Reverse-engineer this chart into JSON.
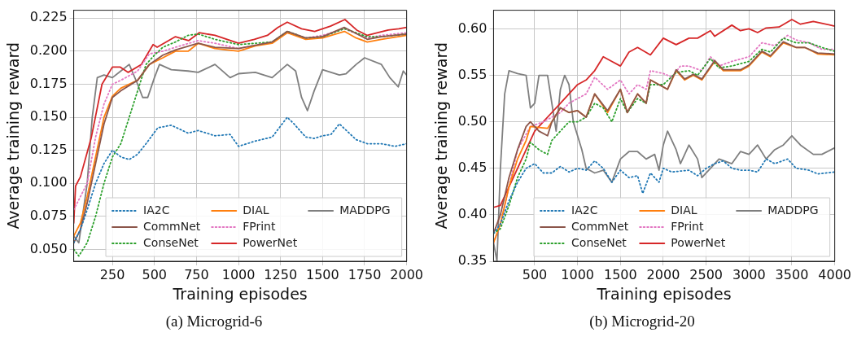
{
  "chart_data": [
    {
      "type": "line",
      "title": "(a) Microgrid-6",
      "xlabel": "Training episodes",
      "ylabel": "Average training reward",
      "xlim": [
        20,
        2000
      ],
      "ylim": [
        0.041,
        0.231
      ],
      "xticks": [
        250,
        500,
        750,
        1000,
        1250,
        1500,
        1750,
        2000
      ],
      "yticks": [
        {
          "value": 0.05,
          "label": "0.050"
        },
        {
          "value": 0.075,
          "label": "0.075"
        },
        {
          "value": 0.1,
          "label": "0.100"
        },
        {
          "value": 0.125,
          "label": "0.125"
        },
        {
          "value": 0.15,
          "label": "0.150"
        },
        {
          "value": 0.175,
          "label": "0.175"
        },
        {
          "value": 0.2,
          "label": "0.200"
        },
        {
          "value": 0.225,
          "label": "0.225"
        }
      ],
      "grid": true,
      "legend": "bottom right",
      "marker": "none",
      "series": [
        {
          "name": "IA2C",
          "color": "#1f77b4",
          "line_style": "dotted",
          "x": [
            20,
            60,
            100,
            150,
            200,
            250,
            300,
            350,
            400,
            450,
            520,
            600,
            700,
            760,
            860,
            950,
            1000,
            1100,
            1200,
            1290,
            1330,
            1400,
            1450,
            1500,
            1550,
            1600,
            1700,
            1766,
            1850,
            1930,
            2000
          ],
          "values": [
            0.055,
            0.065,
            0.08,
            0.1,
            0.115,
            0.125,
            0.12,
            0.118,
            0.122,
            0.13,
            0.142,
            0.144,
            0.138,
            0.14,
            0.136,
            0.137,
            0.128,
            0.132,
            0.135,
            0.15,
            0.145,
            0.135,
            0.134,
            0.136,
            0.137,
            0.145,
            0.133,
            0.13,
            0.13,
            0.128,
            0.13
          ]
        },
        {
          "name": "CommNet",
          "color": "#8c564b",
          "line_style": "solid",
          "x": [
            20,
            60,
            100,
            150,
            200,
            250,
            300,
            400,
            470,
            550,
            625,
            760,
            860,
            1000,
            1200,
            1290,
            1400,
            1500,
            1630,
            1766,
            1850,
            2000
          ],
          "values": [
            0.055,
            0.065,
            0.085,
            0.115,
            0.145,
            0.165,
            0.17,
            0.178,
            0.19,
            0.197,
            0.201,
            0.206,
            0.203,
            0.202,
            0.207,
            0.215,
            0.21,
            0.211,
            0.218,
            0.209,
            0.211,
            0.213
          ]
        },
        {
          "name": "ConseNet",
          "color": "#2ca02c",
          "line_style": "dotted",
          "x": [
            20,
            50,
            100,
            150,
            200,
            250,
            300,
            350,
            400,
            450,
            500,
            550,
            625,
            700,
            760,
            860,
            1000,
            1200,
            1290,
            1400,
            1500,
            1630,
            1766,
            1850,
            2000
          ],
          "values": [
            0.05,
            0.045,
            0.055,
            0.075,
            0.1,
            0.12,
            0.13,
            0.15,
            0.17,
            0.19,
            0.197,
            0.203,
            0.207,
            0.212,
            0.213,
            0.209,
            0.205,
            0.207,
            0.215,
            0.21,
            0.211,
            0.217,
            0.211,
            0.211,
            0.213
          ]
        },
        {
          "name": "DIAL",
          "color": "#ff7f0e",
          "line_style": "solid",
          "x": [
            20,
            60,
            100,
            150,
            200,
            250,
            300,
            400,
            470,
            550,
            625,
            700,
            760,
            860,
            1000,
            1100,
            1200,
            1290,
            1400,
            1500,
            1630,
            1700,
            1766,
            1850,
            2000
          ],
          "values": [
            0.06,
            0.07,
            0.09,
            0.12,
            0.15,
            0.166,
            0.172,
            0.178,
            0.19,
            0.195,
            0.2,
            0.2,
            0.206,
            0.202,
            0.2,
            0.204,
            0.206,
            0.214,
            0.209,
            0.21,
            0.215,
            0.21,
            0.207,
            0.209,
            0.212
          ]
        },
        {
          "name": "FPrint",
          "color": "#e377c2",
          "line_style": "dotted",
          "x": [
            20,
            40,
            100,
            150,
            200,
            250,
            300,
            400,
            470,
            550,
            625,
            760,
            860,
            1000,
            1200,
            1290,
            1400,
            1500,
            1630,
            1766,
            1850,
            2000
          ],
          "values": [
            0.08,
            0.085,
            0.1,
            0.135,
            0.16,
            0.175,
            0.178,
            0.185,
            0.198,
            0.2,
            0.203,
            0.208,
            0.206,
            0.202,
            0.207,
            0.214,
            0.21,
            0.212,
            0.217,
            0.21,
            0.212,
            0.214
          ]
        },
        {
          "name": "PowerNet",
          "color": "#d62728",
          "line_style": "solid",
          "x": [
            20,
            31,
            60,
            125,
            188,
            250,
            297,
            344,
            422,
            492,
            516,
            625,
            703,
            766,
            860,
            1000,
            1094,
            1172,
            1234,
            1290,
            1375,
            1453,
            1547,
            1633,
            1703,
            1766,
            1828,
            1891,
            1953,
            2000
          ],
          "values": [
            0.07,
            0.098,
            0.105,
            0.135,
            0.175,
            0.188,
            0.188,
            0.184,
            0.19,
            0.205,
            0.203,
            0.211,
            0.208,
            0.214,
            0.212,
            0.206,
            0.209,
            0.212,
            0.218,
            0.222,
            0.217,
            0.215,
            0.219,
            0.224,
            0.216,
            0.212,
            0.214,
            0.216,
            0.217,
            0.218
          ]
        },
        {
          "name": "MADDPG",
          "color": "#7f7f7f",
          "line_style": "solid",
          "x": [
            20,
            50,
            100,
            130,
            160,
            200,
            250,
            300,
            350,
            400,
            430,
            460,
            500,
            530,
            600,
            700,
            760,
            860,
            950,
            1000,
            1100,
            1200,
            1290,
            1340,
            1375,
            1410,
            1450,
            1500,
            1600,
            1640,
            1700,
            1750,
            1850,
            1900,
            1950,
            1980,
            2000
          ],
          "values": [
            0.06,
            0.055,
            0.1,
            0.15,
            0.18,
            0.182,
            0.18,
            0.185,
            0.19,
            0.175,
            0.165,
            0.165,
            0.18,
            0.19,
            0.186,
            0.185,
            0.184,
            0.19,
            0.18,
            0.183,
            0.184,
            0.18,
            0.19,
            0.185,
            0.165,
            0.155,
            0.17,
            0.186,
            0.182,
            0.183,
            0.19,
            0.195,
            0.19,
            0.18,
            0.173,
            0.185,
            0.182
          ]
        }
      ]
    },
    {
      "type": "line",
      "title": "(b) Microgrid-20",
      "xlabel": "Training episodes",
      "ylabel": "Average training reward",
      "xlim": [
        20,
        4000
      ],
      "ylim": [
        0.35,
        0.62
      ],
      "xticks": [
        500,
        1000,
        1500,
        2000,
        2500,
        3000,
        3500,
        4000
      ],
      "yticks": [
        {
          "value": 0.35,
          "label": "0.35"
        },
        {
          "value": 0.4,
          "label": "0.40"
        },
        {
          "value": 0.45,
          "label": "0.45"
        },
        {
          "value": 0.5,
          "label": "0.50"
        },
        {
          "value": 0.55,
          "label": "0.55"
        },
        {
          "value": 0.6,
          "label": "0.60"
        }
      ],
      "grid": true,
      "legend": "bottom right",
      "marker": "none",
      "series": [
        {
          "name": "IA2C",
          "color": "#1f77b4",
          "line_style": "dotted",
          "x": [
            20,
            100,
            200,
            300,
            400,
            500,
            600,
            700,
            800,
            900,
            1000,
            1100,
            1200,
            1300,
            1400,
            1500,
            1600,
            1700,
            1760,
            1850,
            1950,
            2000,
            2100,
            2300,
            2400,
            2500,
            2600,
            2700,
            2800,
            2900,
            3000,
            3100,
            3200,
            3300,
            3450,
            3550,
            3700,
            3800,
            4000
          ],
          "values": [
            0.38,
            0.39,
            0.415,
            0.435,
            0.45,
            0.455,
            0.445,
            0.445,
            0.452,
            0.446,
            0.45,
            0.448,
            0.458,
            0.45,
            0.435,
            0.448,
            0.44,
            0.442,
            0.423,
            0.445,
            0.435,
            0.45,
            0.446,
            0.448,
            0.442,
            0.45,
            0.455,
            0.458,
            0.45,
            0.448,
            0.448,
            0.446,
            0.46,
            0.455,
            0.46,
            0.45,
            0.448,
            0.444,
            0.446
          ]
        },
        {
          "name": "CommNet",
          "color": "#8c564b",
          "line_style": "solid",
          "x": [
            20,
            100,
            200,
            300,
            400,
            450,
            550,
            650,
            700,
            800,
            900,
            1000,
            1100,
            1200,
            1350,
            1500,
            1580,
            1700,
            1800,
            1850,
            1950,
            2050,
            2150,
            2250,
            2350,
            2450,
            2600,
            2700,
            2800,
            2900,
            3000,
            3150,
            3250,
            3400,
            3550,
            3650,
            3800,
            4000
          ],
          "values": [
            0.38,
            0.4,
            0.44,
            0.47,
            0.495,
            0.5,
            0.49,
            0.485,
            0.5,
            0.515,
            0.51,
            0.512,
            0.505,
            0.53,
            0.512,
            0.535,
            0.51,
            0.53,
            0.52,
            0.545,
            0.54,
            0.535,
            0.556,
            0.546,
            0.551,
            0.546,
            0.566,
            0.556,
            0.556,
            0.556,
            0.561,
            0.576,
            0.571,
            0.586,
            0.58,
            0.58,
            0.574,
            0.573
          ]
        },
        {
          "name": "ConseNet",
          "color": "#2ca02c",
          "line_style": "dotted",
          "x": [
            20,
            100,
            200,
            300,
            400,
            450,
            550,
            650,
            700,
            800,
            900,
            1000,
            1100,
            1200,
            1300,
            1400,
            1500,
            1580,
            1700,
            1800,
            1850,
            2000,
            2150,
            2300,
            2400,
            2550,
            2650,
            2800,
            3000,
            3150,
            3250,
            3400,
            3550,
            3700,
            3850,
            4000
          ],
          "values": [
            0.38,
            0.385,
            0.41,
            0.44,
            0.46,
            0.478,
            0.47,
            0.465,
            0.48,
            0.49,
            0.5,
            0.5,
            0.505,
            0.52,
            0.515,
            0.5,
            0.525,
            0.51,
            0.525,
            0.52,
            0.54,
            0.54,
            0.553,
            0.555,
            0.55,
            0.568,
            0.558,
            0.56,
            0.565,
            0.578,
            0.575,
            0.59,
            0.585,
            0.585,
            0.58,
            0.576
          ]
        },
        {
          "name": "DIAL",
          "color": "#ff7f0e",
          "line_style": "solid",
          "x": [
            20,
            100,
            200,
            300,
            400,
            450,
            550,
            650,
            700,
            800,
            900,
            1000,
            1100,
            1200,
            1350,
            1500,
            1580,
            1700,
            1800,
            1850,
            1950,
            2050,
            2150,
            2250,
            2350,
            2450,
            2600,
            2700,
            2800,
            2900,
            3000,
            3150,
            3250,
            3400,
            3550,
            3650,
            3800,
            4000
          ],
          "values": [
            0.37,
            0.39,
            0.43,
            0.46,
            0.48,
            0.495,
            0.494,
            0.493,
            0.5,
            0.515,
            0.51,
            0.512,
            0.505,
            0.53,
            0.51,
            0.535,
            0.51,
            0.53,
            0.52,
            0.545,
            0.54,
            0.535,
            0.555,
            0.545,
            0.55,
            0.545,
            0.565,
            0.555,
            0.555,
            0.555,
            0.56,
            0.575,
            0.57,
            0.585,
            0.58,
            0.58,
            0.573,
            0.572
          ]
        },
        {
          "name": "FPrint",
          "color": "#e377c2",
          "line_style": "dotted",
          "x": [
            20,
            100,
            200,
            300,
            450,
            600,
            700,
            800,
            900,
            1000,
            1100,
            1200,
            1350,
            1500,
            1600,
            1700,
            1800,
            1850,
            2000,
            2100,
            2200,
            2300,
            2450,
            2550,
            2650,
            2800,
            3000,
            3150,
            3300,
            3450,
            3550,
            3700,
            3850,
            4000
          ],
          "values": [
            0.37,
            0.39,
            0.43,
            0.47,
            0.495,
            0.5,
            0.505,
            0.51,
            0.52,
            0.525,
            0.53,
            0.548,
            0.535,
            0.545,
            0.53,
            0.54,
            0.535,
            0.555,
            0.552,
            0.548,
            0.56,
            0.56,
            0.555,
            0.57,
            0.56,
            0.565,
            0.57,
            0.585,
            0.582,
            0.593,
            0.588,
            0.585,
            0.578,
            0.578
          ]
        },
        {
          "name": "PowerNet",
          "color": "#d62728",
          "line_style": "solid",
          "x": [
            20,
            100,
            200,
            300,
            400,
            500,
            600,
            700,
            800,
            900,
            1000,
            1100,
            1200,
            1300,
            1400,
            1500,
            1600,
            1700,
            1850,
            2000,
            2150,
            2300,
            2400,
            2550,
            2600,
            2800,
            2900,
            3000,
            3100,
            3200,
            3350,
            3500,
            3600,
            3750,
            3850,
            4000
          ],
          "values": [
            0.408,
            0.41,
            0.43,
            0.45,
            0.47,
            0.49,
            0.5,
            0.51,
            0.52,
            0.53,
            0.54,
            0.545,
            0.555,
            0.57,
            0.565,
            0.56,
            0.575,
            0.58,
            0.572,
            0.59,
            0.583,
            0.59,
            0.59,
            0.598,
            0.592,
            0.604,
            0.598,
            0.6,
            0.596,
            0.601,
            0.602,
            0.61,
            0.605,
            0.608,
            0.606,
            0.603
          ]
        },
        {
          "name": "MADDPG",
          "color": "#7f7f7f",
          "line_style": "solid",
          "x": [
            20,
            60,
            100,
            150,
            200,
            300,
            400,
            450,
            500,
            550,
            650,
            700,
            750,
            800,
            850,
            900,
            950,
            1000,
            1050,
            1100,
            1200,
            1300,
            1400,
            1500,
            1600,
            1700,
            1800,
            1900,
            1950,
            2000,
            2050,
            2150,
            2200,
            2300,
            2400,
            2450,
            2550,
            2650,
            2800,
            2900,
            3000,
            3100,
            3200,
            3300,
            3400,
            3500,
            3600,
            3750,
            3850,
            4000
          ],
          "values": [
            0.37,
            0.35,
            0.45,
            0.53,
            0.555,
            0.552,
            0.55,
            0.515,
            0.52,
            0.55,
            0.55,
            0.52,
            0.49,
            0.535,
            0.55,
            0.54,
            0.5,
            0.485,
            0.47,
            0.45,
            0.445,
            0.448,
            0.435,
            0.46,
            0.468,
            0.468,
            0.46,
            0.465,
            0.448,
            0.475,
            0.49,
            0.47,
            0.455,
            0.475,
            0.46,
            0.44,
            0.45,
            0.46,
            0.455,
            0.468,
            0.465,
            0.475,
            0.46,
            0.47,
            0.475,
            0.485,
            0.475,
            0.465,
            0.465,
            0.472
          ]
        }
      ]
    }
  ]
}
